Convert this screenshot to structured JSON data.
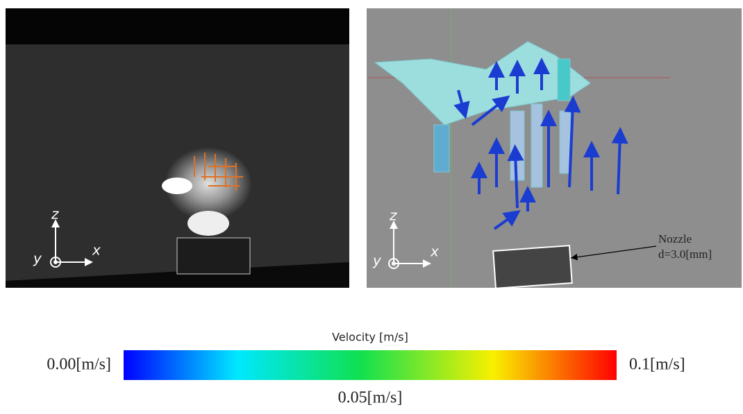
{
  "left_panel": {
    "axes": {
      "z": "z",
      "y": "y",
      "x": "x"
    }
  },
  "right_panel": {
    "axes": {
      "z": "z",
      "y": "y",
      "x": "x"
    },
    "annotation": {
      "line1": "Nozzle",
      "line2": "d=3.0[mm]"
    }
  },
  "colorbar": {
    "title": "Velocity [m/s]",
    "min_label": "0.00[m/s]",
    "mid_label": "0.05[m/s]",
    "max_label": "0.1[m/s]"
  }
}
